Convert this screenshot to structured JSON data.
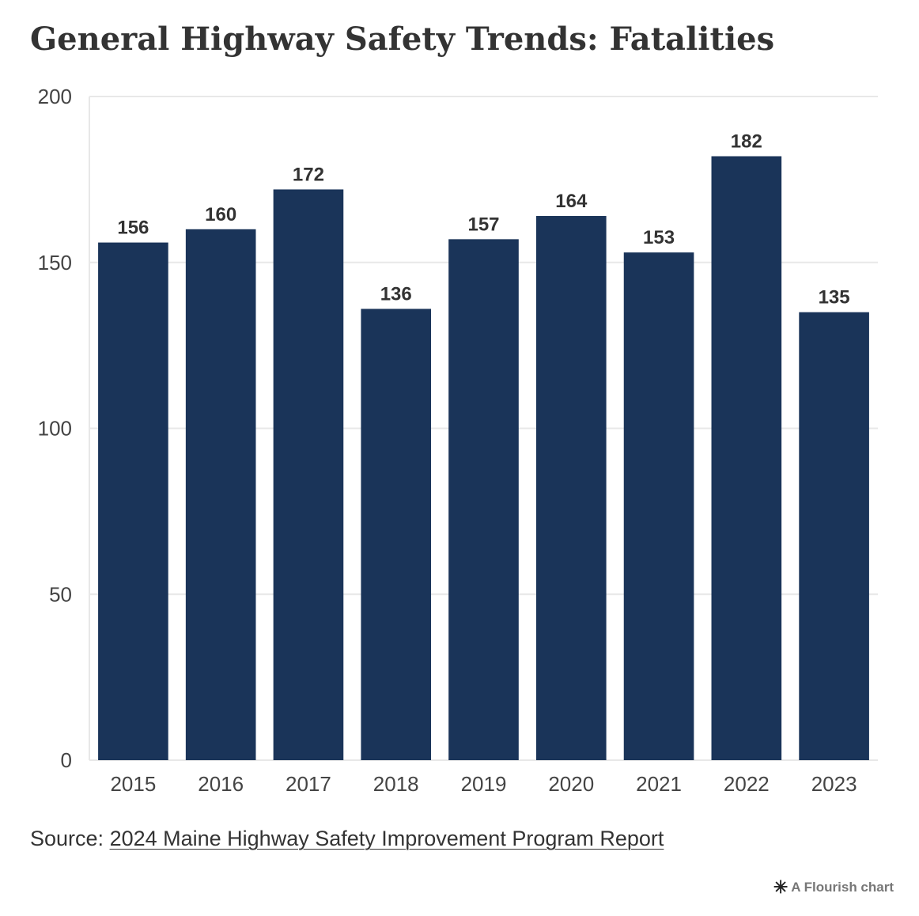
{
  "chart_data": {
    "type": "bar",
    "title": "General Highway Safety Trends: Fatalities",
    "categories": [
      "2015",
      "2016",
      "2017",
      "2018",
      "2019",
      "2020",
      "2021",
      "2022",
      "2023"
    ],
    "values": [
      156,
      160,
      172,
      136,
      157,
      164,
      153,
      182,
      135
    ],
    "ylim": [
      0,
      200
    ],
    "yticks": [
      0,
      50,
      100,
      150,
      200
    ],
    "xlabel": "",
    "ylabel": "",
    "grid": true,
    "bar_color": "#1a3459",
    "data_labels": true
  },
  "source": {
    "prefix": "Source: ",
    "link_text": "2024 Maine Highway Safety Improvement Program Report"
  },
  "credit": {
    "icon": "flourish-asterisk-icon",
    "text": "A Flourish chart"
  }
}
